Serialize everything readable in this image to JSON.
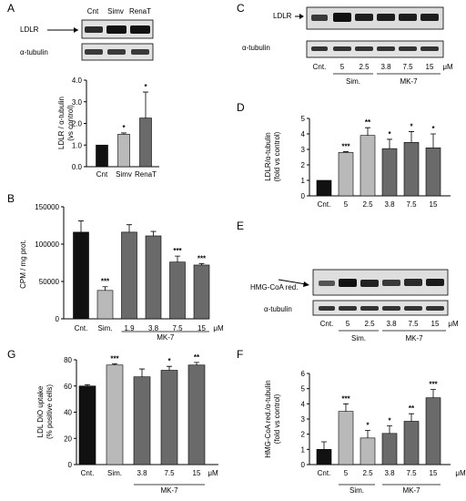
{
  "panels": {
    "A": {
      "letter": "A",
      "blot": {
        "columns": [
          "Cnt",
          "Simv",
          "RenaT"
        ],
        "rows": [
          "LDLR",
          "α-tubulin"
        ]
      }
    },
    "B": {
      "letter": "B"
    },
    "C": {
      "letter": "C",
      "blot": {
        "rows": [
          "LDLR",
          "α-tubulin"
        ],
        "lanes": [
          "Cnt.",
          "5",
          "2.5",
          "3.8",
          "7.5",
          "15",
          "μM"
        ],
        "groups": [
          "Sim.",
          "MK-7"
        ]
      }
    },
    "D": {
      "letter": "D"
    },
    "E": {
      "letter": "E",
      "blot": {
        "rows": [
          "HMG-CoA red.",
          "α-tubulin"
        ],
        "lanes": [
          "Cnt.",
          "5",
          "2.5",
          "3.8",
          "7.5",
          "15",
          "μM"
        ],
        "groups": [
          "Sim.",
          "MK-7"
        ]
      }
    },
    "F": {
      "letter": "F"
    },
    "G": {
      "letter": "G"
    }
  },
  "chart_data": [
    {
      "panel": "A",
      "type": "bar",
      "categories": [
        "Cnt",
        "Simv",
        "RenaT"
      ],
      "values": [
        1.0,
        1.5,
        2.25
      ],
      "errors": [
        0,
        0.06,
        1.2
      ],
      "significance": [
        "",
        "*",
        "*"
      ],
      "colors": [
        "#111111",
        "#b9b9b9",
        "#6a6a6a"
      ],
      "ylabel": "LDLR / α-tubulin (vs control)",
      "ylim": [
        0,
        4
      ],
      "yticks": [
        "0.0",
        "1.0",
        "2.0",
        "3.0",
        "4.0"
      ],
      "group_labels": [],
      "unit": ""
    },
    {
      "panel": "B",
      "type": "bar",
      "categories": [
        "Cnt.",
        "Sim.",
        "1.9",
        "3.8",
        "7.5",
        "15"
      ],
      "values": [
        116000,
        38000,
        116000,
        111000,
        76000,
        72000
      ],
      "errors": [
        15000,
        5000,
        10000,
        6000,
        8000,
        2000
      ],
      "significance": [
        "",
        "***",
        "",
        "",
        "***",
        "***"
      ],
      "colors": [
        "#111111",
        "#b9b9b9",
        "#6a6a6a",
        "#6a6a6a",
        "#6a6a6a",
        "#6a6a6a"
      ],
      "ylabel": "CPM / mg prot.",
      "ylim": [
        0,
        150000
      ],
      "yticks": [
        "0",
        "50000",
        "100000",
        "150000"
      ],
      "group_labels": [
        "MK-7"
      ],
      "unit": "μM"
    },
    {
      "panel": "D",
      "type": "bar",
      "categories": [
        "Cnt.",
        "5",
        "2.5",
        "3.8",
        "7.5",
        "15"
      ],
      "values": [
        1.0,
        2.8,
        3.9,
        3.05,
        3.45,
        3.1
      ],
      "errors": [
        0,
        0.05,
        0.5,
        0.6,
        0.7,
        0.9
      ],
      "significance": [
        "",
        "***",
        "**",
        "*",
        "*",
        "*"
      ],
      "colors": [
        "#111111",
        "#b9b9b9",
        "#b9b9b9",
        "#6a6a6a",
        "#6a6a6a",
        "#6a6a6a"
      ],
      "ylabel": "LDLR/α-tubulin (fold vs control)",
      "ylim": [
        0,
        5
      ],
      "yticks": [
        "0",
        "1",
        "2",
        "3",
        "4",
        "5"
      ],
      "group_labels": [],
      "unit": ""
    },
    {
      "panel": "F",
      "type": "bar",
      "categories": [
        "Cnt.",
        "5",
        "2.5",
        "3.8",
        "7.5",
        "15"
      ],
      "values": [
        1.0,
        3.5,
        1.75,
        2.05,
        2.85,
        4.4
      ],
      "errors": [
        0.5,
        0.5,
        0.5,
        0.5,
        0.5,
        0.55
      ],
      "significance": [
        "",
        "***",
        "*",
        "*",
        "**",
        "***"
      ],
      "colors": [
        "#111111",
        "#b9b9b9",
        "#b9b9b9",
        "#6a6a6a",
        "#6a6a6a",
        "#6a6a6a"
      ],
      "ylabel": "HMG-CoA red./α-tubulin (fold vs control)",
      "ylim": [
        0,
        6
      ],
      "yticks": [
        "0",
        "1",
        "2",
        "3",
        "4",
        "5",
        "6"
      ],
      "group_labels": [
        "Sim.",
        "MK-7"
      ],
      "unit": "μM"
    },
    {
      "panel": "G",
      "type": "bar",
      "categories": [
        "Cnt.",
        "Sim.",
        "3.8",
        "7.5",
        "15"
      ],
      "values": [
        60,
        76,
        67,
        72,
        76
      ],
      "errors": [
        1,
        1,
        6,
        3,
        2
      ],
      "significance": [
        "",
        "***",
        "",
        "*",
        "**"
      ],
      "colors": [
        "#111111",
        "#b9b9b9",
        "#6a6a6a",
        "#6a6a6a",
        "#6a6a6a"
      ],
      "ylabel": "LDL DiO uptake (% positive cells)",
      "ylim": [
        0,
        80
      ],
      "yticks": [
        "0",
        "20",
        "40",
        "60",
        "80"
      ],
      "group_labels": [
        "MK-7"
      ],
      "unit": "μM"
    }
  ]
}
